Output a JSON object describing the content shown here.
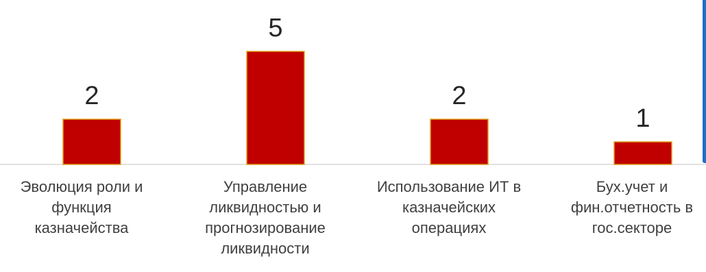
{
  "chart_data": {
    "type": "bar",
    "categories": [
      "Эволюция роли и функция казначейства",
      "Управление ликвидностью и прогнозирование ликвидности",
      "Использование ИТ в казначейских операциях",
      "Бух.учет и фин.отчетность в гос.секторе"
    ],
    "category_lines": [
      [
        "Эволюция роли и",
        "функция",
        "казначейства"
      ],
      [
        "Управление",
        "ликвидностью и",
        "прогнозирование",
        "ликвидности"
      ],
      [
        "Использование ИТ в",
        "казначейских",
        "операциях"
      ],
      [
        "Бух.учет и",
        "фин.отчетность в",
        "гос.секторе"
      ]
    ],
    "values": [
      2,
      5,
      2,
      1
    ],
    "data_labels": [
      "2",
      "5",
      "2",
      "1"
    ],
    "ylim": [
      0,
      5
    ],
    "grid": false,
    "legend": false,
    "bar_color": "#c00000",
    "bar_edge_color": "#e0a020",
    "axis_color": "#d9d9d9",
    "accent_color": "#1f6fc5"
  }
}
